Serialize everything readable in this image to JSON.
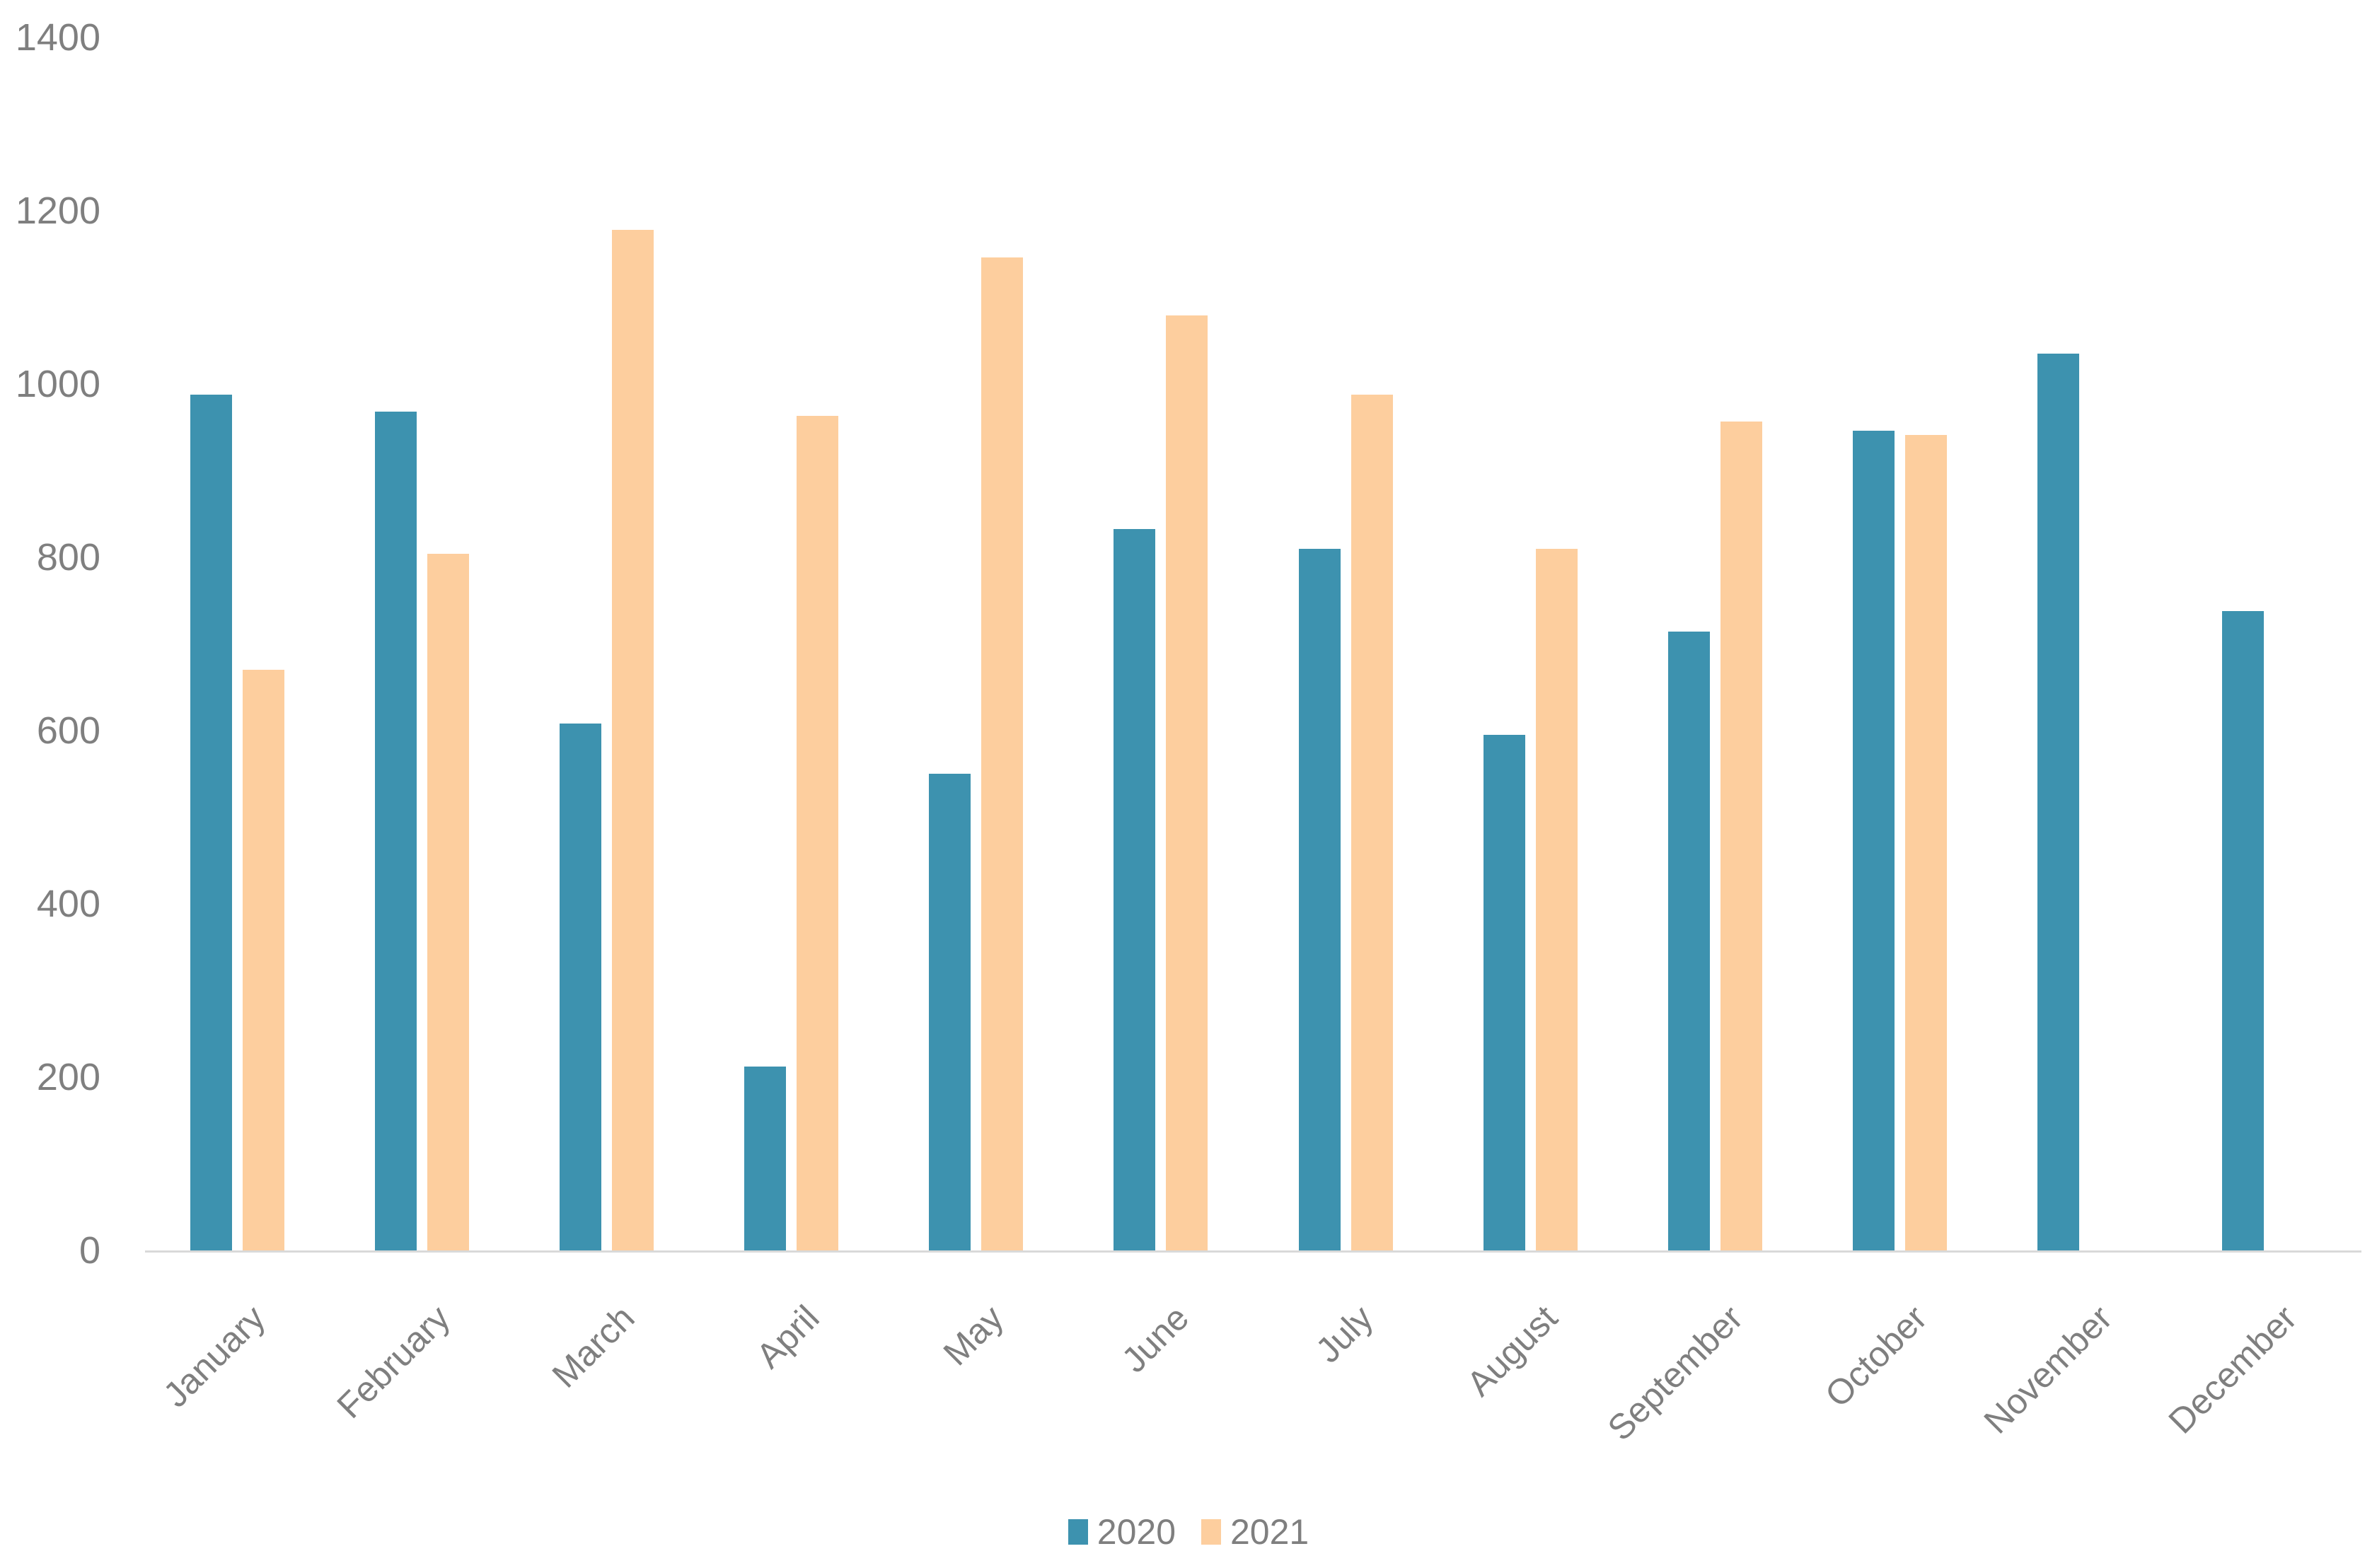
{
  "chart_data": {
    "type": "bar",
    "title": "",
    "xlabel": "",
    "ylabel": "",
    "categories": [
      "January",
      "February",
      "March",
      "April",
      "May",
      "June",
      "July",
      "August",
      "September",
      "October",
      "November",
      "December"
    ],
    "series": [
      {
        "name": "2020",
        "color": "#3D92AF",
        "values": [
          988,
          968,
          608,
          212,
          550,
          833,
          810,
          595,
          714,
          946,
          1035,
          738
        ]
      },
      {
        "name": "2021",
        "color": "#FDCE9E",
        "values": [
          670,
          804,
          1178,
          963,
          1146,
          1079,
          988,
          810,
          957,
          941,
          null,
          null
        ]
      }
    ],
    "ylim": [
      0,
      1400
    ],
    "yticks": [
      0,
      200,
      400,
      600,
      800,
      1000,
      1200,
      1400
    ],
    "grid": "off",
    "legend_position": "bottom-center",
    "axis_text_color": "#7F7F7F",
    "axis_line_color": "#D9D9D9",
    "background_color": "#FFFFFF"
  }
}
